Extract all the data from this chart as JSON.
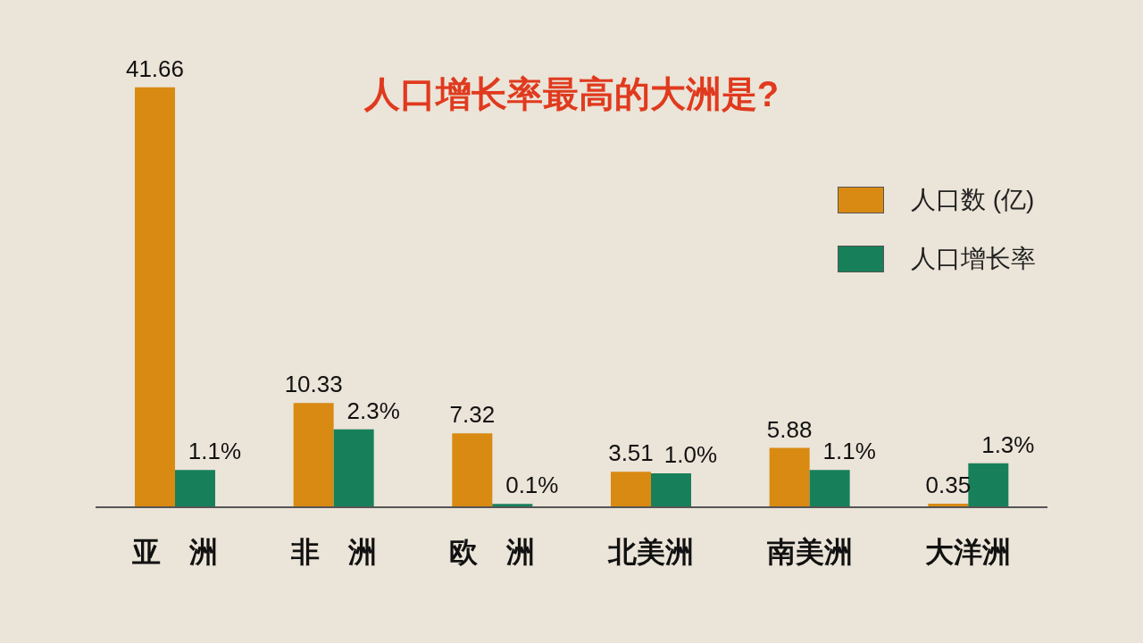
{
  "chart_data": {
    "type": "bar",
    "title": "人口增长率最高的大洲是?",
    "categories": [
      "亚　洲",
      "非　洲",
      "欧　洲",
      "北美洲",
      "南美洲",
      "大洋洲"
    ],
    "series": [
      {
        "name": "人口数 (亿)",
        "color": "#d98a12",
        "values": [
          41.66,
          10.33,
          7.32,
          3.51,
          5.88,
          0.35
        ],
        "value_labels": [
          "41.66",
          "10.33",
          "7.32",
          "3.51",
          "5.88",
          "0.35"
        ]
      },
      {
        "name": "人口增长率",
        "color": "#17805a",
        "axis": "y2",
        "values": [
          1.1,
          2.3,
          0.1,
          1.0,
          1.1,
          1.3
        ],
        "value_labels": [
          "1.1%",
          "2.3%",
          "0.1%",
          "1.0%",
          "1.1%",
          "1.3%"
        ]
      }
    ],
    "tick_labels": "x",
    "grid": false,
    "legend": "top right"
  }
}
